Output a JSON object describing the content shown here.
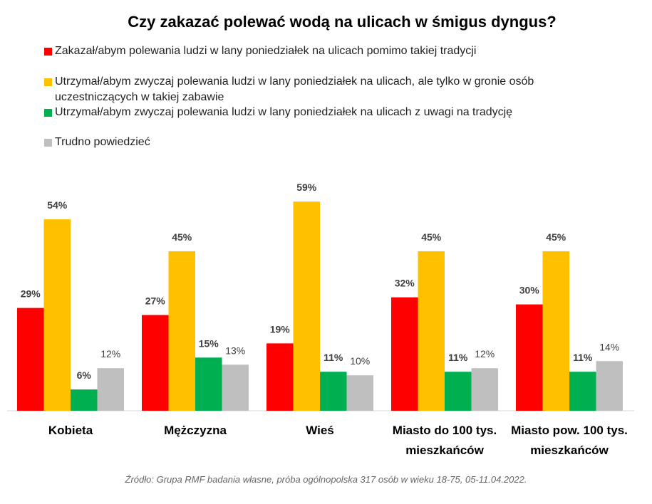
{
  "chart_data": {
    "type": "bar",
    "title": "Czy zakazać polewać wodą na ulicach w śmigus dyngus?",
    "source": "Źródło: Grupa RMF badania własne, próba ogólnopolska 317 osób w wieku 18-75, 05-11.04.2022.",
    "categories": [
      "Kobieta",
      "Mężczyzna",
      "Wieś",
      "Miasto do 100 tys. mieszkańców",
      "Miasto pow. 100 tys. mieszkańców"
    ],
    "series": [
      {
        "name": "Zakazał/abym polewania ludzi w lany poniedziałek na ulicach pomimo takiej tradycji",
        "color": "#ff0000",
        "values": [
          29,
          27,
          19,
          32,
          30
        ],
        "value_labels": [
          "29%",
          "27%",
          "19%",
          "32%",
          "30%"
        ]
      },
      {
        "name": "Utrzymał/abym zwyczaj polewania ludzi w lany poniedziałek na ulicach, ale tylko w gronie osób uczestniczących w takiej zabawie",
        "color": "#ffc000",
        "values": [
          54,
          45,
          59,
          45,
          45
        ],
        "value_labels": [
          "54%",
          "45%",
          "59%",
          "45%",
          "45%"
        ]
      },
      {
        "name": "Utrzymał/abym zwyczaj polewania ludzi w lany poniedziałek na ulicach z uwagi na tradycję",
        "color": "#00b050",
        "values": [
          6,
          15,
          11,
          11,
          11
        ],
        "value_labels": [
          "6%",
          "15%",
          "11%",
          "11%",
          "11%"
        ]
      },
      {
        "name": "Trudno powiedzieć",
        "color": "#bfbfbf",
        "values": [
          12,
          13,
          10,
          12,
          14
        ],
        "value_labels": [
          "12%",
          "13%",
          "10%",
          "12%",
          "14%"
        ]
      }
    ]
  }
}
